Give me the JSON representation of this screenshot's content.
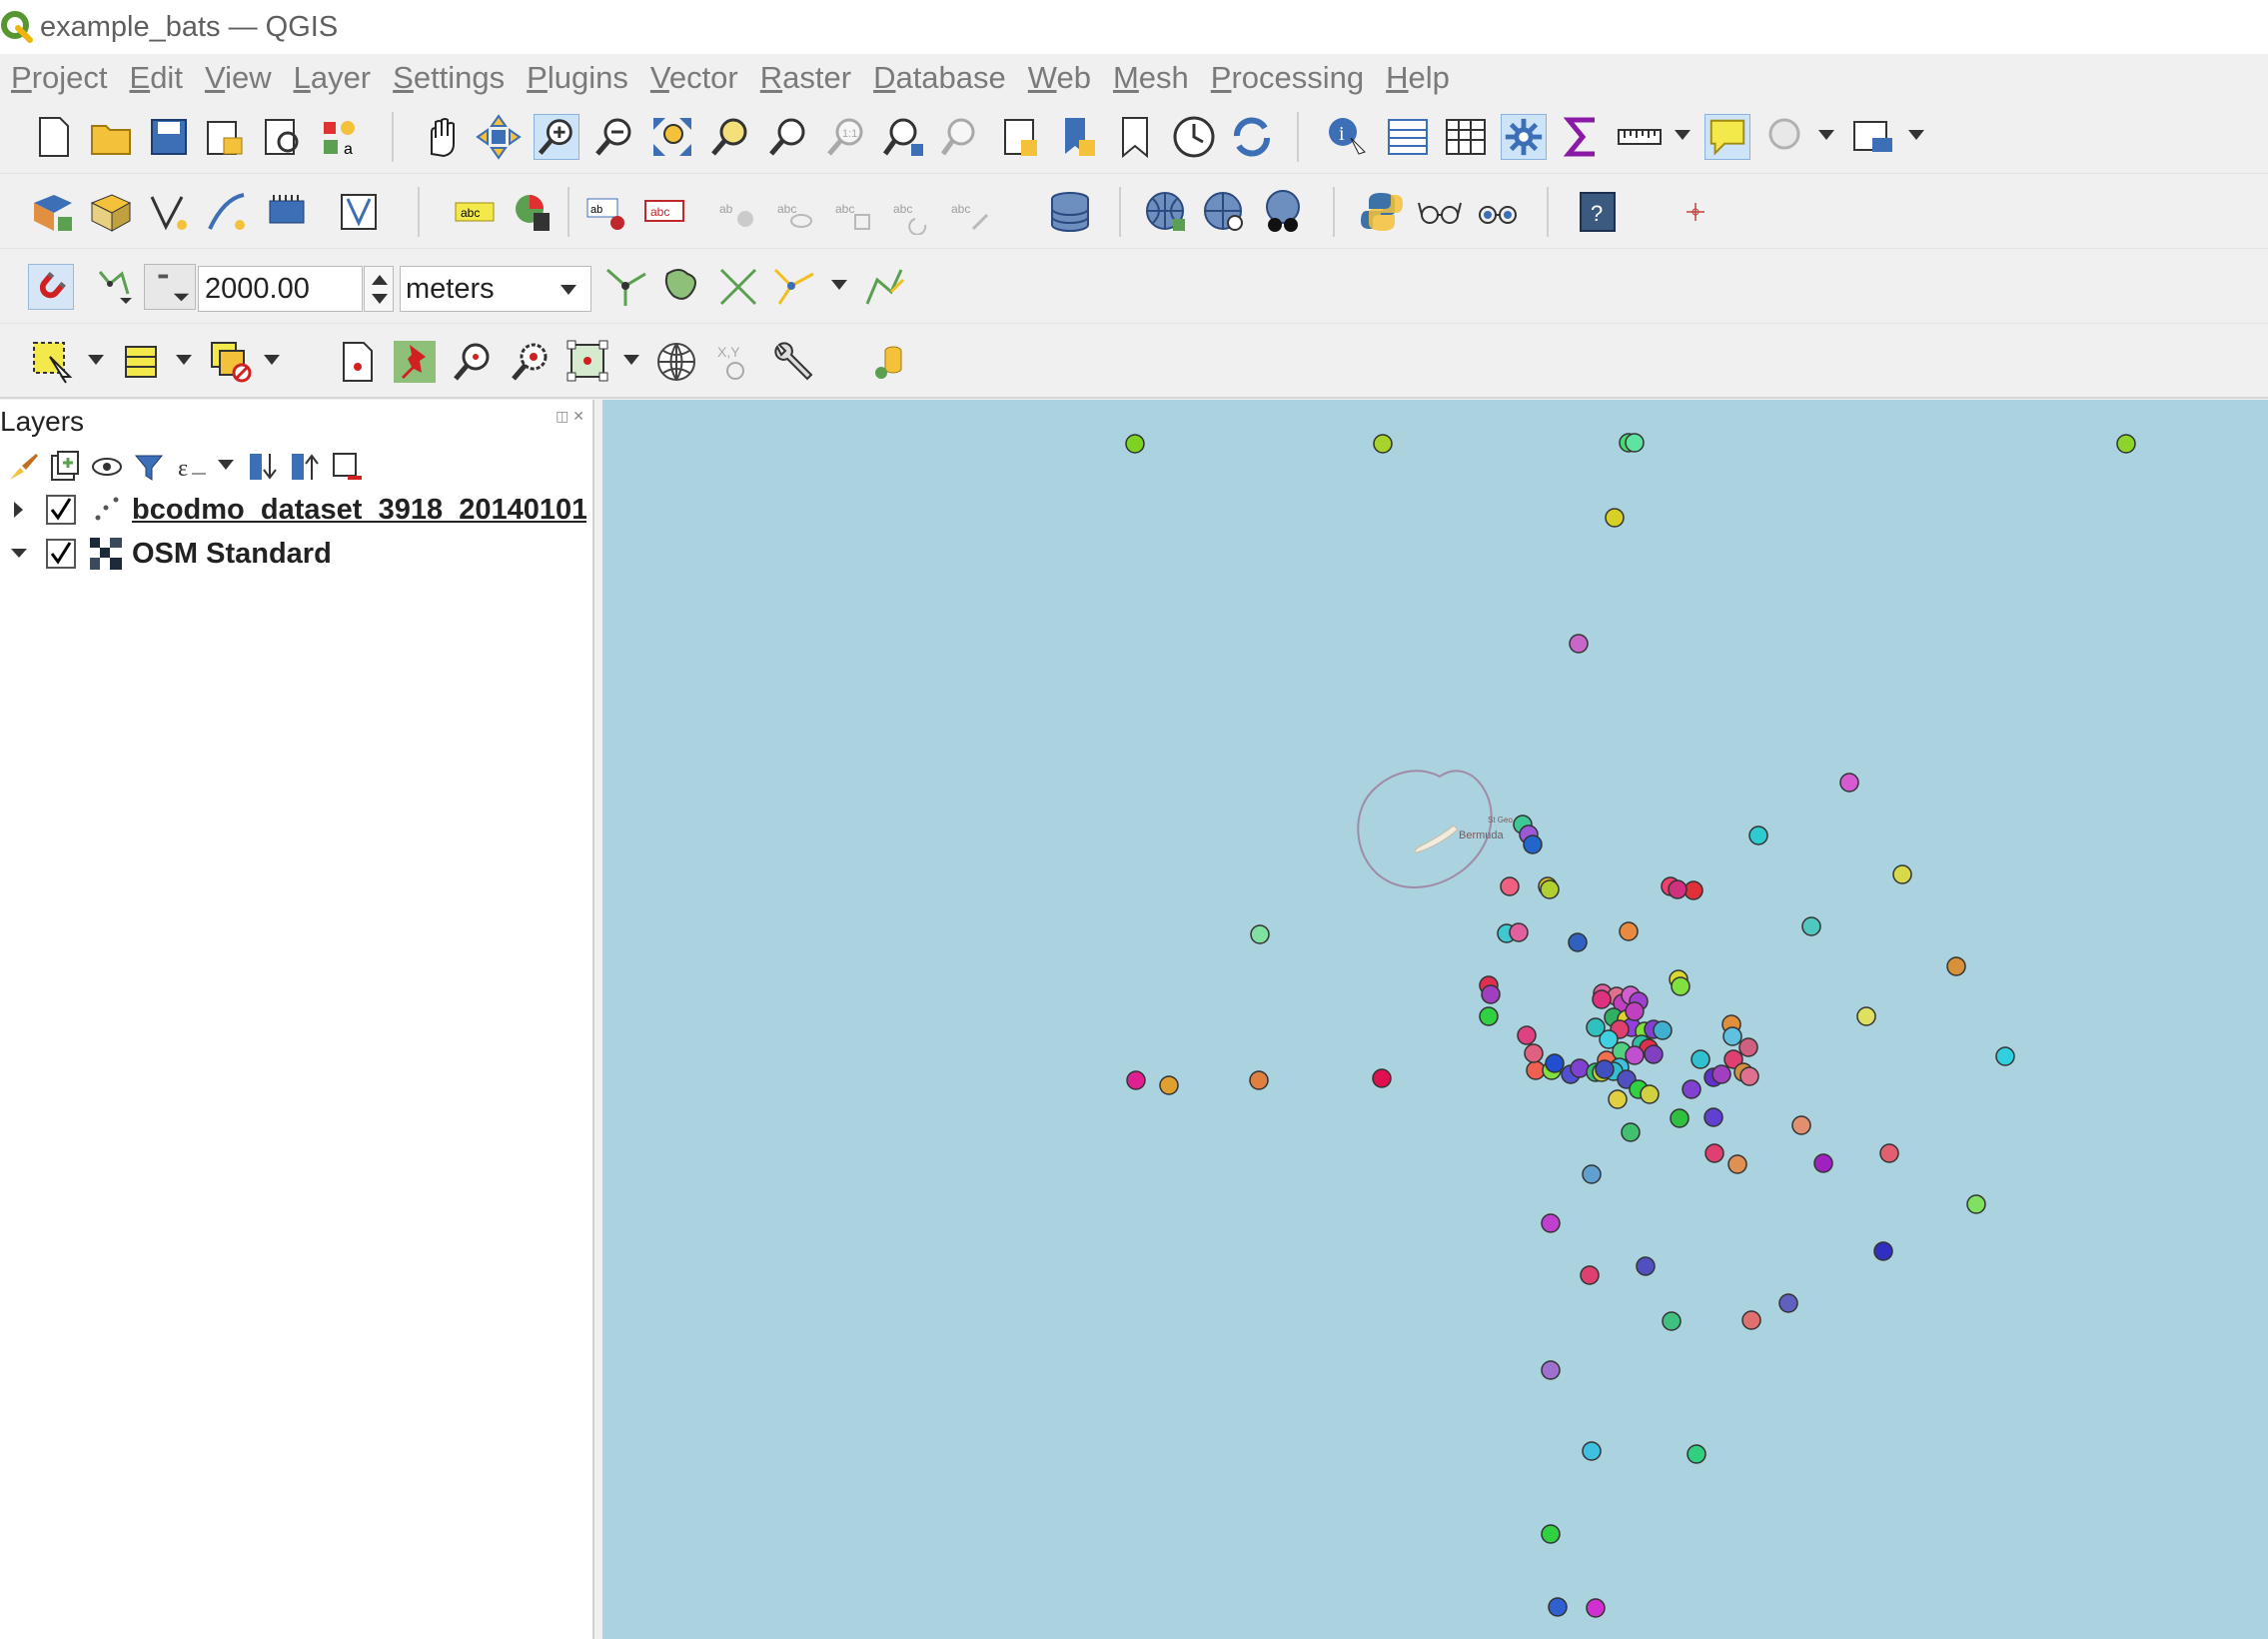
{
  "window": {
    "title": "example_bats — QGIS"
  },
  "menubar": {
    "items": [
      "Project",
      "Edit",
      "View",
      "Layer",
      "Settings",
      "Plugins",
      "Vector",
      "Raster",
      "Database",
      "Web",
      "Mesh",
      "Processing",
      "Help"
    ]
  },
  "snapping": {
    "tolerance": "2000.00",
    "units": "meters"
  },
  "layers_panel": {
    "title": "Layers",
    "layers": [
      {
        "name": "bcodmo_dataset_3918_20140101",
        "visible": true,
        "expanded": false,
        "type": "point-layer"
      },
      {
        "name": "OSM Standard",
        "visible": true,
        "expanded": true,
        "type": "raster-tile-layer"
      }
    ]
  },
  "map": {
    "water_color": "#abd3df",
    "land_label": "Bermuda",
    "land_sublabel": "St Geo",
    "zoom_ring_color": "#a08aa8"
  },
  "colors": {
    "accent": "#589632",
    "checkmark": "#000000",
    "menu_text": "#7a7a7a"
  }
}
